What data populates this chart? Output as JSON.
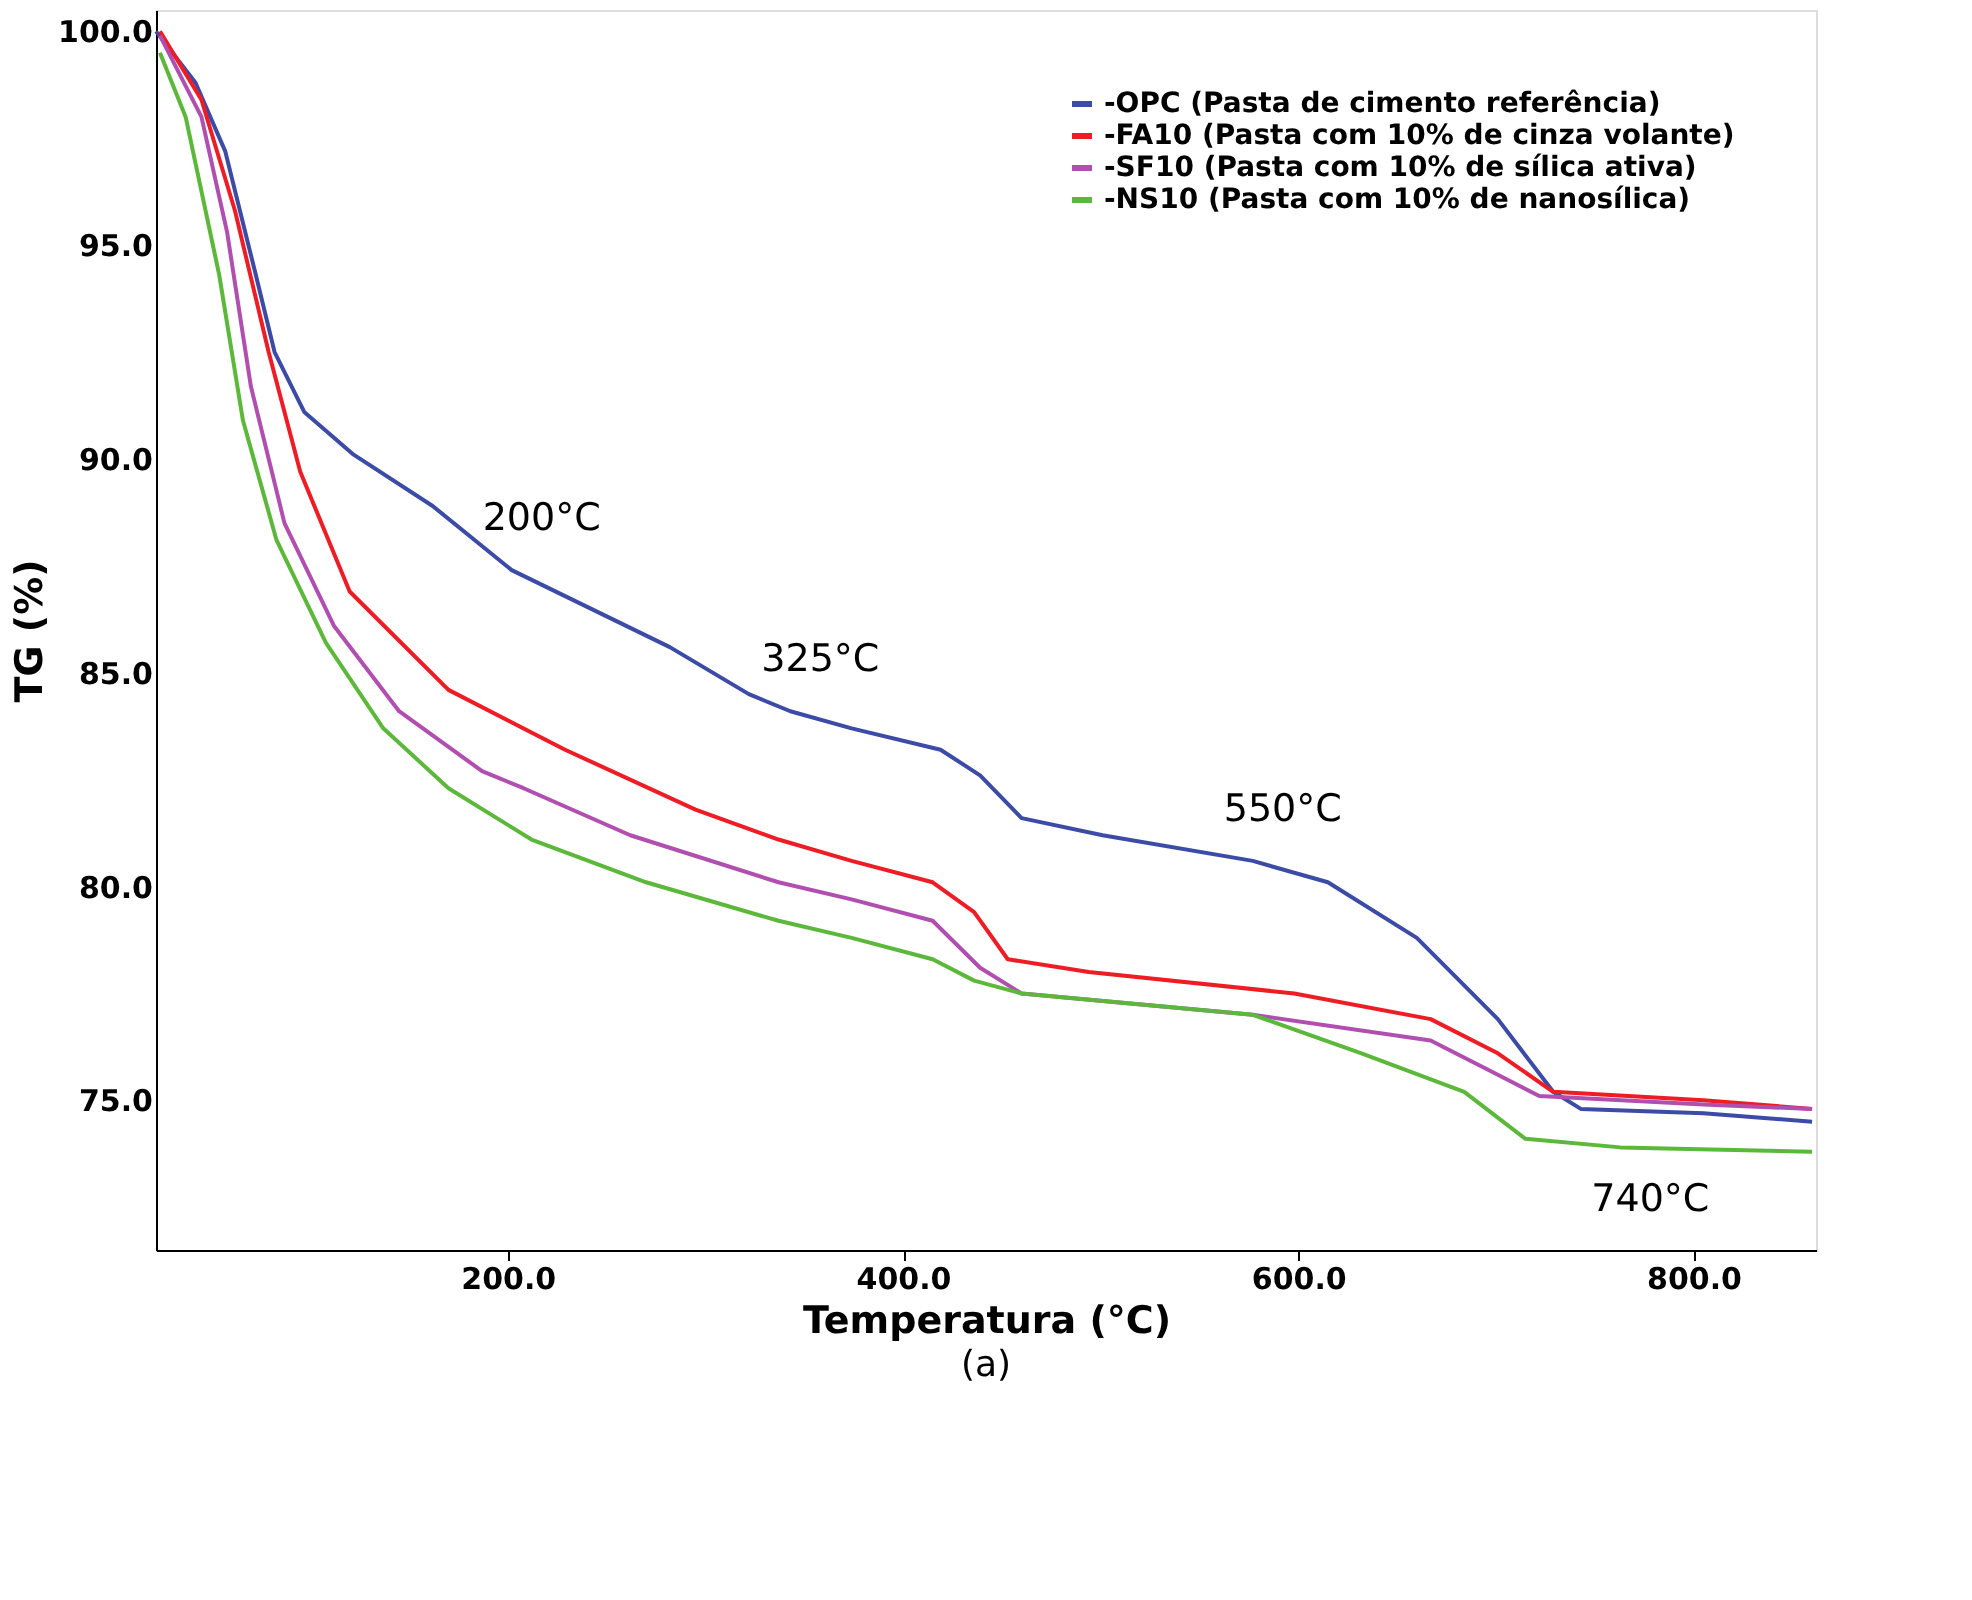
{
  "chart_data": {
    "type": "line",
    "title": "(a)",
    "xlabel": "Temperatura (°C)",
    "ylabel": "TG (%)",
    "xlim": [
      22,
      862
    ],
    "ylim": [
      71.5,
      100.5
    ],
    "xticks": [
      {
        "value": 200,
        "label": "200.0"
      },
      {
        "value": 400,
        "label": "400.0"
      },
      {
        "value": 600,
        "label": "600.0"
      },
      {
        "value": 800,
        "label": "800.0"
      }
    ],
    "yticks": [
      {
        "value": 75,
        "label": "75.0"
      },
      {
        "value": 80,
        "label": "80.0"
      },
      {
        "value": 85,
        "label": "85.0"
      },
      {
        "value": 90,
        "label": "90.0"
      },
      {
        "value": 95,
        "label": "95.0"
      },
      {
        "value": 100,
        "label": "100.0"
      }
    ],
    "grid": false,
    "legend": "top right",
    "line_style": "solid",
    "marker": "none",
    "series": [
      {
        "name": "-OPC (Pasta de cimento referência)",
        "color": "#3b4ba6",
        "x": [
          22,
          42,
          57,
          72,
          82,
          97,
          122,
          162,
          202,
          242,
          282,
          322,
          343,
          374,
          419,
          439,
          460,
          501,
          577,
          615,
          660,
          701,
          729,
          743,
          805,
          860
        ],
        "values": [
          100.0,
          98.8,
          97.2,
          94.4,
          92.5,
          91.1,
          90.1,
          88.9,
          87.4,
          86.5,
          85.6,
          84.5,
          84.1,
          83.7,
          83.2,
          82.6,
          81.6,
          81.2,
          80.6,
          80.1,
          78.8,
          76.9,
          75.2,
          74.8,
          74.7,
          74.5
        ]
      },
      {
        "name": "-FA10 (Pasta com 10% de cinza volante)",
        "color": "#ee1c25",
        "x": [
          24,
          45,
          62,
          79,
          95,
          120,
          170,
          229,
          295,
          337,
          374,
          415,
          436,
          453,
          494,
          598,
          667,
          701,
          729,
          805,
          860
        ],
        "values": [
          100.0,
          98.4,
          95.8,
          92.5,
          89.7,
          86.9,
          84.6,
          83.2,
          81.8,
          81.1,
          80.6,
          80.1,
          79.4,
          78.3,
          78.0,
          77.5,
          76.9,
          76.1,
          75.2,
          75.0,
          74.8
        ]
      },
      {
        "name": "-SF10 (Pasta com 10% de sílica ativa)",
        "color": "#b04fb0",
        "x": [
          24,
          45,
          58,
          70,
          87,
          112,
          145,
          187,
          208,
          262,
          337,
          374,
          415,
          439,
          460,
          577,
          667,
          701,
          722,
          805,
          860
        ],
        "values": [
          99.9,
          98.0,
          95.3,
          91.7,
          88.5,
          86.1,
          84.1,
          82.7,
          82.3,
          81.2,
          80.1,
          79.7,
          79.2,
          78.1,
          77.5,
          77.0,
          76.4,
          75.6,
          75.1,
          74.9,
          74.8
        ]
      },
      {
        "name": "-NS10 (Pasta com 10% de nanosílica)",
        "color": "#5cb83a",
        "x": [
          24,
          37,
          54,
          66,
          83,
          108,
          137,
          170,
          212,
          270,
          337,
          374,
          415,
          436,
          460,
          577,
          632,
          684,
          715,
          763,
          860
        ],
        "values": [
          99.5,
          98.0,
          94.3,
          90.9,
          88.1,
          85.7,
          83.7,
          82.3,
          81.1,
          80.1,
          79.2,
          78.8,
          78.3,
          77.8,
          77.5,
          77.0,
          76.1,
          75.2,
          74.1,
          73.9,
          73.8
        ]
      }
    ],
    "annotations": [
      {
        "text": "200°C",
        "x": 202,
        "y": 87.4
      },
      {
        "text": "325°C",
        "x": 343,
        "y": 84.1
      },
      {
        "text": "550°C",
        "x": 577,
        "y": 80.6
      },
      {
        "text": "740°C",
        "x": 763,
        "y": 73.9
      }
    ]
  }
}
